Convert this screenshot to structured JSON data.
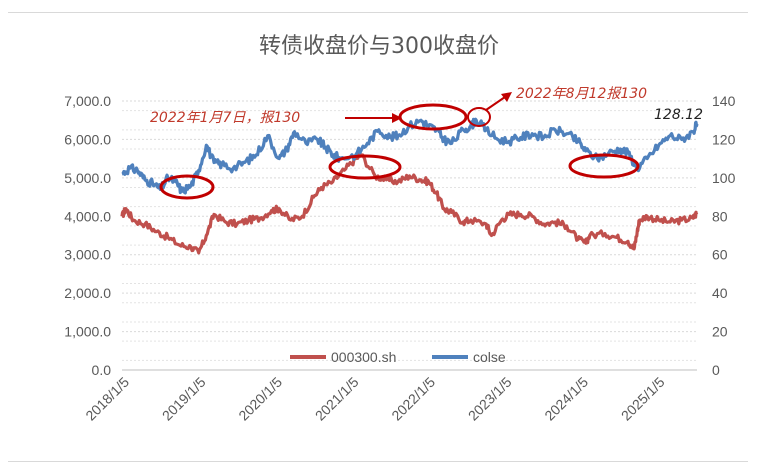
{
  "chart_data": {
    "type": "line",
    "title": "转债收盘价与300收盘价",
    "x_tick_labels": [
      "2018/1/5",
      "2019/1/5",
      "2020/1/5",
      "2021/1/5",
      "2022/1/5",
      "2023/1/5",
      "2024/1/5",
      "2025/1/5"
    ],
    "y_left": {
      "ticks": [
        "0.0",
        "1,000.0",
        "2,000.0",
        "3,000.0",
        "4,000.0",
        "5,000.0",
        "6,000.0",
        "7,000.0"
      ],
      "ylim": [
        0,
        7000
      ]
    },
    "y_right": {
      "ticks": [
        "0",
        "20",
        "40",
        "60",
        "80",
        "100",
        "120",
        "140"
      ],
      "ylim": [
        0,
        140
      ]
    },
    "xlim": [
      2018.0,
      2025.5
    ],
    "grid": true,
    "legend_position": "bottom-center",
    "series": [
      {
        "name": "000300.sh",
        "axis": "left",
        "color": "#c0504d",
        "x": [
          2018.0,
          2018.05,
          2018.15,
          2018.3,
          2018.45,
          2018.6,
          2018.75,
          2018.9,
          2019.0,
          2019.1,
          2019.2,
          2019.35,
          2019.5,
          2019.65,
          2019.8,
          2019.95,
          2020.05,
          2020.2,
          2020.35,
          2020.5,
          2020.6,
          2020.75,
          2020.9,
          2021.05,
          2021.12,
          2021.3,
          2021.45,
          2021.6,
          2021.75,
          2021.9,
          2022.0,
          2022.1,
          2022.2,
          2022.3,
          2022.45,
          2022.55,
          2022.75,
          2022.82,
          2022.95,
          2023.05,
          2023.2,
          2023.35,
          2023.5,
          2023.65,
          2023.8,
          2023.95,
          2024.05,
          2024.1,
          2024.3,
          2024.45,
          2024.6,
          2024.68,
          2024.72,
          2024.75,
          2024.85,
          2025.0,
          2025.15,
          2025.3,
          2025.45,
          2025.5
        ],
        "values": [
          4000,
          4200,
          3900,
          3800,
          3600,
          3450,
          3250,
          3200,
          3050,
          3500,
          4050,
          3850,
          3800,
          3900,
          3950,
          4150,
          4200,
          3900,
          4000,
          4500,
          4750,
          4900,
          5200,
          5500,
          5600,
          5050,
          4950,
          4900,
          5050,
          4950,
          4900,
          4600,
          4200,
          4100,
          3850,
          3900,
          3800,
          3500,
          3900,
          4050,
          4050,
          4000,
          3800,
          3850,
          3750,
          3400,
          3300,
          3500,
          3550,
          3450,
          3350,
          3150,
          3600,
          3900,
          4000,
          3900,
          3850,
          3900,
          3950,
          4100
        ]
      },
      {
        "name": "colse",
        "axis": "right",
        "color": "#4f81bd",
        "x": [
          2018.0,
          2018.1,
          2018.2,
          2018.3,
          2018.4,
          2018.5,
          2018.6,
          2018.7,
          2018.78,
          2018.9,
          2019.0,
          2019.1,
          2019.2,
          2019.3,
          2019.45,
          2019.6,
          2019.75,
          2019.9,
          2020.05,
          2020.15,
          2020.25,
          2020.4,
          2020.55,
          2020.65,
          2020.75,
          2020.85,
          2021.05,
          2021.2,
          2021.35,
          2021.5,
          2021.6,
          2021.75,
          2021.9,
          2022.0,
          2022.1,
          2022.2,
          2022.3,
          2022.45,
          2022.55,
          2022.62,
          2022.75,
          2022.9,
          2023.05,
          2023.2,
          2023.35,
          2023.5,
          2023.65,
          2023.8,
          2023.95,
          2024.05,
          2024.2,
          2024.35,
          2024.5,
          2024.6,
          2024.72,
          2024.85,
          2025.0,
          2025.15,
          2025.3,
          2025.45,
          2025.5
        ],
        "values": [
          102,
          105,
          104,
          99,
          97,
          94,
          100,
          98,
          93,
          96,
          104,
          117,
          108,
          107,
          105,
          108,
          112,
          122,
          110,
          115,
          124,
          118,
          120,
          116,
          112,
          110,
          112,
          118,
          125,
          121,
          122,
          127,
          130,
          127,
          125,
          120,
          118,
          125,
          127,
          130,
          125,
          120,
          119,
          121,
          123,
          121,
          125,
          123,
          119,
          114,
          110,
          113,
          115,
          113,
          105,
          110,
          117,
          122,
          120,
          124,
          128.12
        ]
      }
    ],
    "annotations": [
      {
        "text": "2022年1月7日，报130"
      },
      {
        "text": "2022年8月12报130"
      },
      {
        "text": "128.12"
      }
    ]
  }
}
